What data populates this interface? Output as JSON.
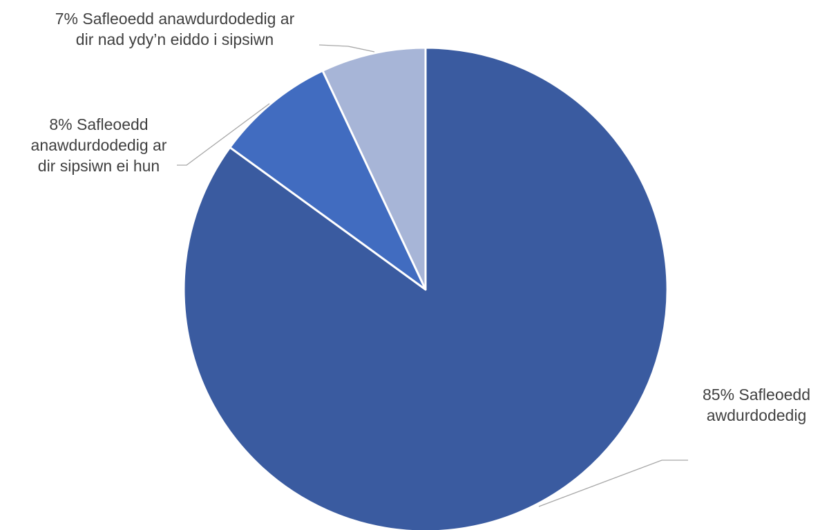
{
  "chart_data": {
    "type": "pie",
    "title": "",
    "legend": "none",
    "slices": [
      {
        "value": 85,
        "colour": "#3a5ba0",
        "label_lines": [
          "85% Safleoedd",
          "awdurdodedig"
        ]
      },
      {
        "value": 8,
        "colour": "#416cc0",
        "label_lines": [
          "8% Safleoedd",
          "anawdurdodedig ar",
          "dir sipsiwn ei hun"
        ]
      },
      {
        "value": 7,
        "colour": "#a7b5d7",
        "label_lines": [
          "7% Safleoedd anawdurdodedig ar",
          "dir nad ydy’n eiddo i sipsiwn"
        ]
      }
    ]
  }
}
